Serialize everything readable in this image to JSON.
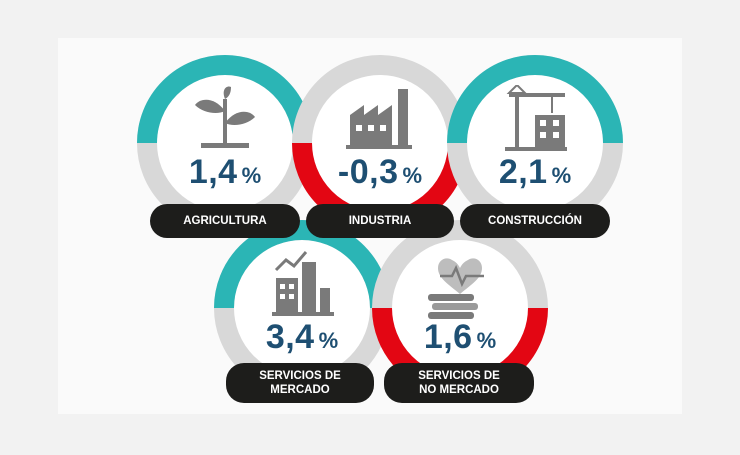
{
  "colors": {
    "positive": "#2bb5b5",
    "negative": "#e30613",
    "track": "#d8d8d8",
    "value_text": "#1e4f72",
    "pill_bg": "#1d1d1b",
    "icon": "#7a7a7a"
  },
  "sectors": [
    {
      "id": "agricultura",
      "value": "1,4",
      "unit": "%",
      "growth": 1.4,
      "label_lines": [
        "AGRICULTURA"
      ],
      "icon": "plant-icon"
    },
    {
      "id": "industria",
      "value": "-0,3",
      "unit": "%",
      "growth": -0.3,
      "label_lines": [
        "INDUSTRIA"
      ],
      "icon": "factory-icon"
    },
    {
      "id": "construccion",
      "value": "2,1",
      "unit": "%",
      "growth": 2.1,
      "label_lines": [
        "CONSTRUCCIÓN"
      ],
      "icon": "crane-icon"
    },
    {
      "id": "servicios-mercado",
      "value": "3,4",
      "unit": "%",
      "growth": 3.4,
      "label_lines": [
        "SERVICIOS DE",
        "MERCADO"
      ],
      "icon": "buildings-chart-icon"
    },
    {
      "id": "servicios-no-mercado",
      "value": "1,6",
      "unit": "%",
      "growth": 1.6,
      "label_lines": [
        "SERVICIOS DE",
        "NO MERCADO"
      ],
      "icon": "heart-books-icon"
    }
  ]
}
